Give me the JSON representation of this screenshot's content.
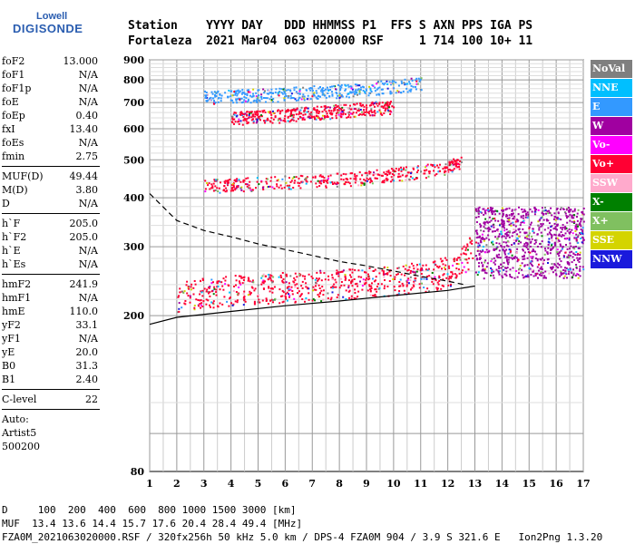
{
  "logo": {
    "line1": "Lowell",
    "line2": "DIGISONDE"
  },
  "header": {
    "row1": "Station    YYYY DAY   DDD HHMMSS P1  FFS S AXN PPS IGA PS",
    "row2": "Fortaleza  2021 Mar04 063 020000 RSF     1 714 100 10+ 11"
  },
  "params": {
    "group1": [
      {
        "label": "foF2",
        "value": "13.000"
      },
      {
        "label": "foF1",
        "value": "N/A"
      },
      {
        "label": "foF1p",
        "value": "N/A"
      },
      {
        "label": "foE",
        "value": "N/A"
      },
      {
        "label": "foEp",
        "value": "0.40"
      },
      {
        "label": "fxI",
        "value": "13.40"
      },
      {
        "label": "foEs",
        "value": "N/A"
      },
      {
        "label": "fmin",
        "value": "2.75"
      }
    ],
    "group2": [
      {
        "label": "MUF(D)",
        "value": "49.44"
      },
      {
        "label": "M(D)",
        "value": "3.80"
      },
      {
        "label": "D",
        "value": "N/A"
      }
    ],
    "group3": [
      {
        "label": "h`F",
        "value": "205.0"
      },
      {
        "label": "h`F2",
        "value": "205.0"
      },
      {
        "label": "h`E",
        "value": "N/A"
      },
      {
        "label": "h`Es",
        "value": "N/A"
      }
    ],
    "group4": [
      {
        "label": "hmF2",
        "value": "241.9"
      },
      {
        "label": "hmF1",
        "value": "N/A"
      },
      {
        "label": "hmE",
        "value": "110.0"
      },
      {
        "label": "yF2",
        "value": "33.1"
      },
      {
        "label": "yF1",
        "value": "N/A"
      },
      {
        "label": "yE",
        "value": "20.0"
      },
      {
        "label": "B0",
        "value": "31.3"
      },
      {
        "label": "B1",
        "value": "2.40"
      }
    ],
    "group5": [
      {
        "label": "C-level",
        "value": "22"
      }
    ],
    "auto": [
      "Auto:",
      "Artist5",
      "500200"
    ]
  },
  "legend": [
    {
      "label": "NoVal",
      "color": "#7f7f7f"
    },
    {
      "label": "NNE",
      "color": "#00bfff"
    },
    {
      "label": "E",
      "color": "#3399ff"
    },
    {
      "label": "W",
      "color": "#a000a0"
    },
    {
      "label": "Vo-",
      "color": "#ff00ff"
    },
    {
      "label": "Vo+",
      "color": "#ff0033"
    },
    {
      "label": "SSW",
      "color": "#ffaacc"
    },
    {
      "label": "X-",
      "color": "#008000"
    },
    {
      "label": "X+",
      "color": "#80c060"
    },
    {
      "label": "SSE",
      "color": "#d4d400"
    },
    {
      "label": "NNW",
      "color": "#1a1adc"
    }
  ],
  "bottom": {
    "line1": "D     100  200  400  600  800 1000 1500 3000 [km]",
    "line2": "MUF  13.4 13.6 14.4 15.7 17.6 20.4 28.4 49.4 [MHz]",
    "line3": "FZA0M_2021063020000.RSF / 320fx256h 50 kHz 5.0 km / DPS-4 FZA0M 904 / 3.9 S 321.6 E   Ion2Png 1.3.20"
  },
  "chart_data": {
    "type": "scatter",
    "title": "",
    "xlabel": "",
    "ylabel": "",
    "xlim": [
      1,
      17
    ],
    "ylim": [
      80,
      900
    ],
    "y_scale": "log",
    "x_ticks": [
      1,
      2,
      3,
      4,
      5,
      6,
      7,
      8,
      9,
      10,
      11,
      12,
      13,
      14,
      15,
      16,
      17
    ],
    "y_ticks": [
      80,
      200,
      300,
      400,
      500,
      600,
      700,
      800,
      900
    ],
    "grid": true,
    "traces": [
      {
        "name": "1st hop O trace",
        "color": "#ff0033",
        "x": [
          2.0,
          3,
          4,
          5,
          6,
          7,
          8,
          9,
          10,
          11,
          12,
          12.5,
          12.9
        ],
        "y": [
          225,
          230,
          233,
          236,
          238,
          240,
          242,
          245,
          248,
          252,
          260,
          275,
          300
        ]
      },
      {
        "name": "2nd hop trace",
        "color": "#ff0033",
        "x": [
          3,
          4,
          5,
          6,
          7,
          8,
          9,
          10,
          11,
          12,
          12.5
        ],
        "y": [
          430,
          432,
          436,
          440,
          442,
          446,
          452,
          460,
          468,
          480,
          495
        ]
      },
      {
        "name": "3rd hop trace",
        "color": "#ff0033",
        "x": [
          4,
          5,
          6,
          7,
          8,
          9,
          10
        ],
        "y": [
          640,
          645,
          652,
          660,
          668,
          676,
          685
        ]
      },
      {
        "name": "4th hop trace",
        "color": "#3399ff",
        "x": [
          3,
          4,
          5,
          6,
          7,
          8,
          9,
          10,
          11
        ],
        "y": [
          725,
          728,
          732,
          738,
          745,
          752,
          762,
          772,
          785
        ]
      },
      {
        "name": "spread F region",
        "color": "#a000a0",
        "x": [
          13,
          14,
          15,
          16,
          17
        ],
        "y": [
          290,
          300,
          300,
          295,
          290
        ]
      }
    ],
    "profile_curve": {
      "x": [
        1.0,
        2,
        3,
        4,
        5,
        6,
        7,
        8,
        9,
        10,
        11,
        12,
        12.6
      ],
      "y": [
        410,
        350,
        330,
        318,
        305,
        295,
        285,
        275,
        268,
        260,
        252,
        245,
        240
      ]
    },
    "bottom_curve": {
      "x": [
        1.0,
        2,
        4,
        6,
        8,
        10,
        12,
        13
      ],
      "y": [
        190,
        198,
        205,
        212,
        218,
        225,
        232,
        238
      ]
    }
  }
}
